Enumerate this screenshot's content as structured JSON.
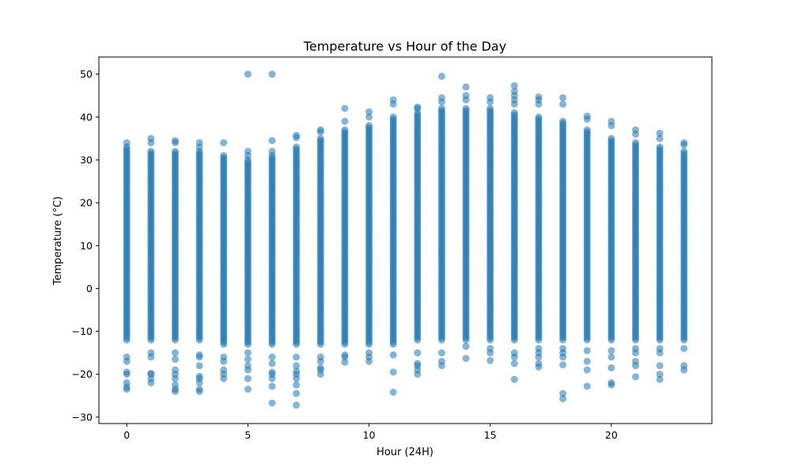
{
  "chart_data": {
    "type": "scatter",
    "title": "Temperature vs Hour of the Day",
    "xlabel": "Hour (24H)",
    "ylabel": "Temperature (°C)",
    "xlim": [
      -1.15,
      24.15
    ],
    "ylim": [
      -31.5,
      54
    ],
    "xticks": [
      0,
      5,
      10,
      15,
      20
    ],
    "yticks": [
      -30,
      -20,
      -10,
      0,
      10,
      20,
      30,
      40,
      50
    ],
    "grid": false,
    "legend": "none",
    "marker_color": "#1f77b4",
    "marker_alpha": 0.55,
    "series": [
      {
        "bands": [
          {
            "hour": 0,
            "low": -12,
            "high": 33
          },
          {
            "hour": 1,
            "low": -12,
            "high": 32
          },
          {
            "hour": 2,
            "low": -12,
            "high": 32
          },
          {
            "hour": 3,
            "low": -12,
            "high": 32
          },
          {
            "hour": 4,
            "low": -13,
            "high": 31
          },
          {
            "hour": 5,
            "low": -13,
            "high": 30
          },
          {
            "hour": 6,
            "low": -13,
            "high": 31
          },
          {
            "hour": 7,
            "low": -13,
            "high": 33
          },
          {
            "hour": 8,
            "low": -13,
            "high": 35
          },
          {
            "hour": 9,
            "low": -13,
            "high": 37
          },
          {
            "hour": 10,
            "low": -13,
            "high": 38
          },
          {
            "hour": 11,
            "low": -13,
            "high": 40
          },
          {
            "hour": 12,
            "low": -12,
            "high": 41
          },
          {
            "hour": 13,
            "low": -12,
            "high": 42
          },
          {
            "hour": 14,
            "low": -12,
            "high": 42
          },
          {
            "hour": 15,
            "low": -12,
            "high": 42
          },
          {
            "hour": 16,
            "low": -12,
            "high": 41
          },
          {
            "hour": 17,
            "low": -12,
            "high": 40
          },
          {
            "hour": 18,
            "low": -12,
            "high": 39
          },
          {
            "hour": 19,
            "low": -12,
            "high": 37
          },
          {
            "hour": 20,
            "low": -12,
            "high": 35
          },
          {
            "hour": 21,
            "low": -12,
            "high": 34
          },
          {
            "hour": 22,
            "low": -12,
            "high": 33
          },
          {
            "hour": 23,
            "low": -12,
            "high": 32
          }
        ],
        "points": [
          [
            0,
            34
          ],
          [
            0,
            -19.5
          ],
          [
            0,
            -20
          ],
          [
            0,
            -22
          ],
          [
            0,
            -23.5
          ],
          [
            0,
            -23
          ],
          [
            0,
            -17
          ],
          [
            0,
            -16
          ],
          [
            1,
            35
          ],
          [
            1,
            34
          ],
          [
            1,
            -15
          ],
          [
            1,
            -16
          ],
          [
            1,
            -19.8
          ],
          [
            1,
            -20
          ],
          [
            1,
            -21
          ],
          [
            1,
            -22
          ],
          [
            2,
            34.5
          ],
          [
            2,
            34
          ],
          [
            2,
            -15
          ],
          [
            2,
            -16.5
          ],
          [
            2,
            -19
          ],
          [
            2,
            -20
          ],
          [
            2,
            -21
          ],
          [
            2,
            -22.5
          ],
          [
            2,
            -23.5
          ],
          [
            2,
            -24
          ],
          [
            3,
            34
          ],
          [
            3,
            33
          ],
          [
            3,
            -15.5
          ],
          [
            3,
            -16
          ],
          [
            3,
            -18
          ],
          [
            3,
            -20.5
          ],
          [
            3,
            -21
          ],
          [
            3,
            -22
          ],
          [
            3,
            -23.5
          ],
          [
            3,
            -24
          ],
          [
            4,
            34
          ],
          [
            4,
            -16
          ],
          [
            4,
            -17
          ],
          [
            4,
            -19
          ],
          [
            4,
            -20
          ],
          [
            4,
            -21
          ],
          [
            5,
            50
          ],
          [
            5,
            32
          ],
          [
            5,
            31
          ],
          [
            5,
            -15
          ],
          [
            5,
            -16.5
          ],
          [
            5,
            -18
          ],
          [
            5,
            -19
          ],
          [
            5,
            -21
          ],
          [
            5,
            -23.5
          ],
          [
            6,
            50
          ],
          [
            6,
            34.5
          ],
          [
            6,
            32
          ],
          [
            6,
            -16
          ],
          [
            6,
            -17.5
          ],
          [
            6,
            -19.5
          ],
          [
            6,
            -20
          ],
          [
            6,
            -21
          ],
          [
            6,
            -22.8
          ],
          [
            6,
            -26.7
          ],
          [
            7,
            35.7
          ],
          [
            7,
            35.2
          ],
          [
            7,
            -16
          ],
          [
            7,
            -18
          ],
          [
            7,
            -19.3
          ],
          [
            7,
            -20
          ],
          [
            7,
            -21
          ],
          [
            7,
            -22.5
          ],
          [
            7,
            -24.5
          ],
          [
            7,
            -27.2
          ],
          [
            8,
            37
          ],
          [
            8,
            36.5
          ],
          [
            8,
            -16
          ],
          [
            8,
            -17
          ],
          [
            8,
            -18.5
          ],
          [
            8,
            -19
          ],
          [
            8,
            -20
          ],
          [
            9,
            42
          ],
          [
            9,
            39
          ],
          [
            9,
            -15.5
          ],
          [
            9,
            -16
          ],
          [
            9,
            -17.2
          ],
          [
            10,
            41.2
          ],
          [
            10,
            40
          ],
          [
            10,
            -15
          ],
          [
            10,
            -16
          ],
          [
            10,
            -17
          ],
          [
            11,
            44
          ],
          [
            11,
            43
          ],
          [
            11,
            -15.5
          ],
          [
            11,
            -19.5
          ],
          [
            11,
            -24.2
          ],
          [
            12,
            42.3
          ],
          [
            12,
            42
          ],
          [
            12,
            -15
          ],
          [
            12,
            -17.5
          ],
          [
            12,
            -18
          ],
          [
            12,
            -19
          ],
          [
            12,
            -20
          ],
          [
            13,
            49.5
          ],
          [
            13,
            44.5
          ],
          [
            13,
            43.5
          ],
          [
            13,
            -15
          ],
          [
            13,
            -17
          ],
          [
            13,
            -18
          ],
          [
            14,
            47
          ],
          [
            14,
            45
          ],
          [
            14,
            44
          ],
          [
            14,
            -13.5
          ],
          [
            14,
            -16.3
          ],
          [
            15,
            44.5
          ],
          [
            15,
            43.5
          ],
          [
            15,
            -14
          ],
          [
            15,
            -15
          ],
          [
            15,
            -16.8
          ],
          [
            16,
            47.3
          ],
          [
            16,
            46
          ],
          [
            16,
            45
          ],
          [
            16,
            44
          ],
          [
            16,
            43
          ],
          [
            16,
            -15
          ],
          [
            16,
            -16
          ],
          [
            16,
            -17.5
          ],
          [
            16,
            -21.2
          ],
          [
            17,
            44.7
          ],
          [
            17,
            44
          ],
          [
            17,
            43
          ],
          [
            17,
            -14
          ],
          [
            17,
            -15
          ],
          [
            17,
            -16
          ],
          [
            17,
            -17.5
          ],
          [
            17,
            -18.3
          ],
          [
            18,
            44.5
          ],
          [
            18,
            43
          ],
          [
            18,
            -14
          ],
          [
            18,
            -15
          ],
          [
            18,
            -16
          ],
          [
            18,
            -17.8
          ],
          [
            18,
            -24.5
          ],
          [
            18,
            -25.7
          ],
          [
            19,
            40.2
          ],
          [
            19,
            39.5
          ],
          [
            19,
            -14.5
          ],
          [
            19,
            -17
          ],
          [
            19,
            -19
          ],
          [
            19,
            -22.8
          ],
          [
            20,
            39
          ],
          [
            20,
            38
          ],
          [
            20,
            -14.5
          ],
          [
            20,
            -16
          ],
          [
            20,
            -18.5
          ],
          [
            20,
            -22
          ],
          [
            20,
            -22.5
          ],
          [
            21,
            37
          ],
          [
            21,
            36
          ],
          [
            21,
            -14
          ],
          [
            21,
            -15
          ],
          [
            21,
            -17
          ],
          [
            21,
            -18
          ],
          [
            21,
            -20.6
          ],
          [
            22,
            36.2
          ],
          [
            22,
            35
          ],
          [
            22,
            -14
          ],
          [
            22,
            -15
          ],
          [
            22,
            -18
          ],
          [
            22,
            -20
          ],
          [
            22,
            -21.2
          ],
          [
            23,
            34
          ],
          [
            23,
            33.5
          ],
          [
            23,
            -14
          ],
          [
            23,
            -18
          ],
          [
            23,
            -19
          ]
        ]
      }
    ]
  }
}
